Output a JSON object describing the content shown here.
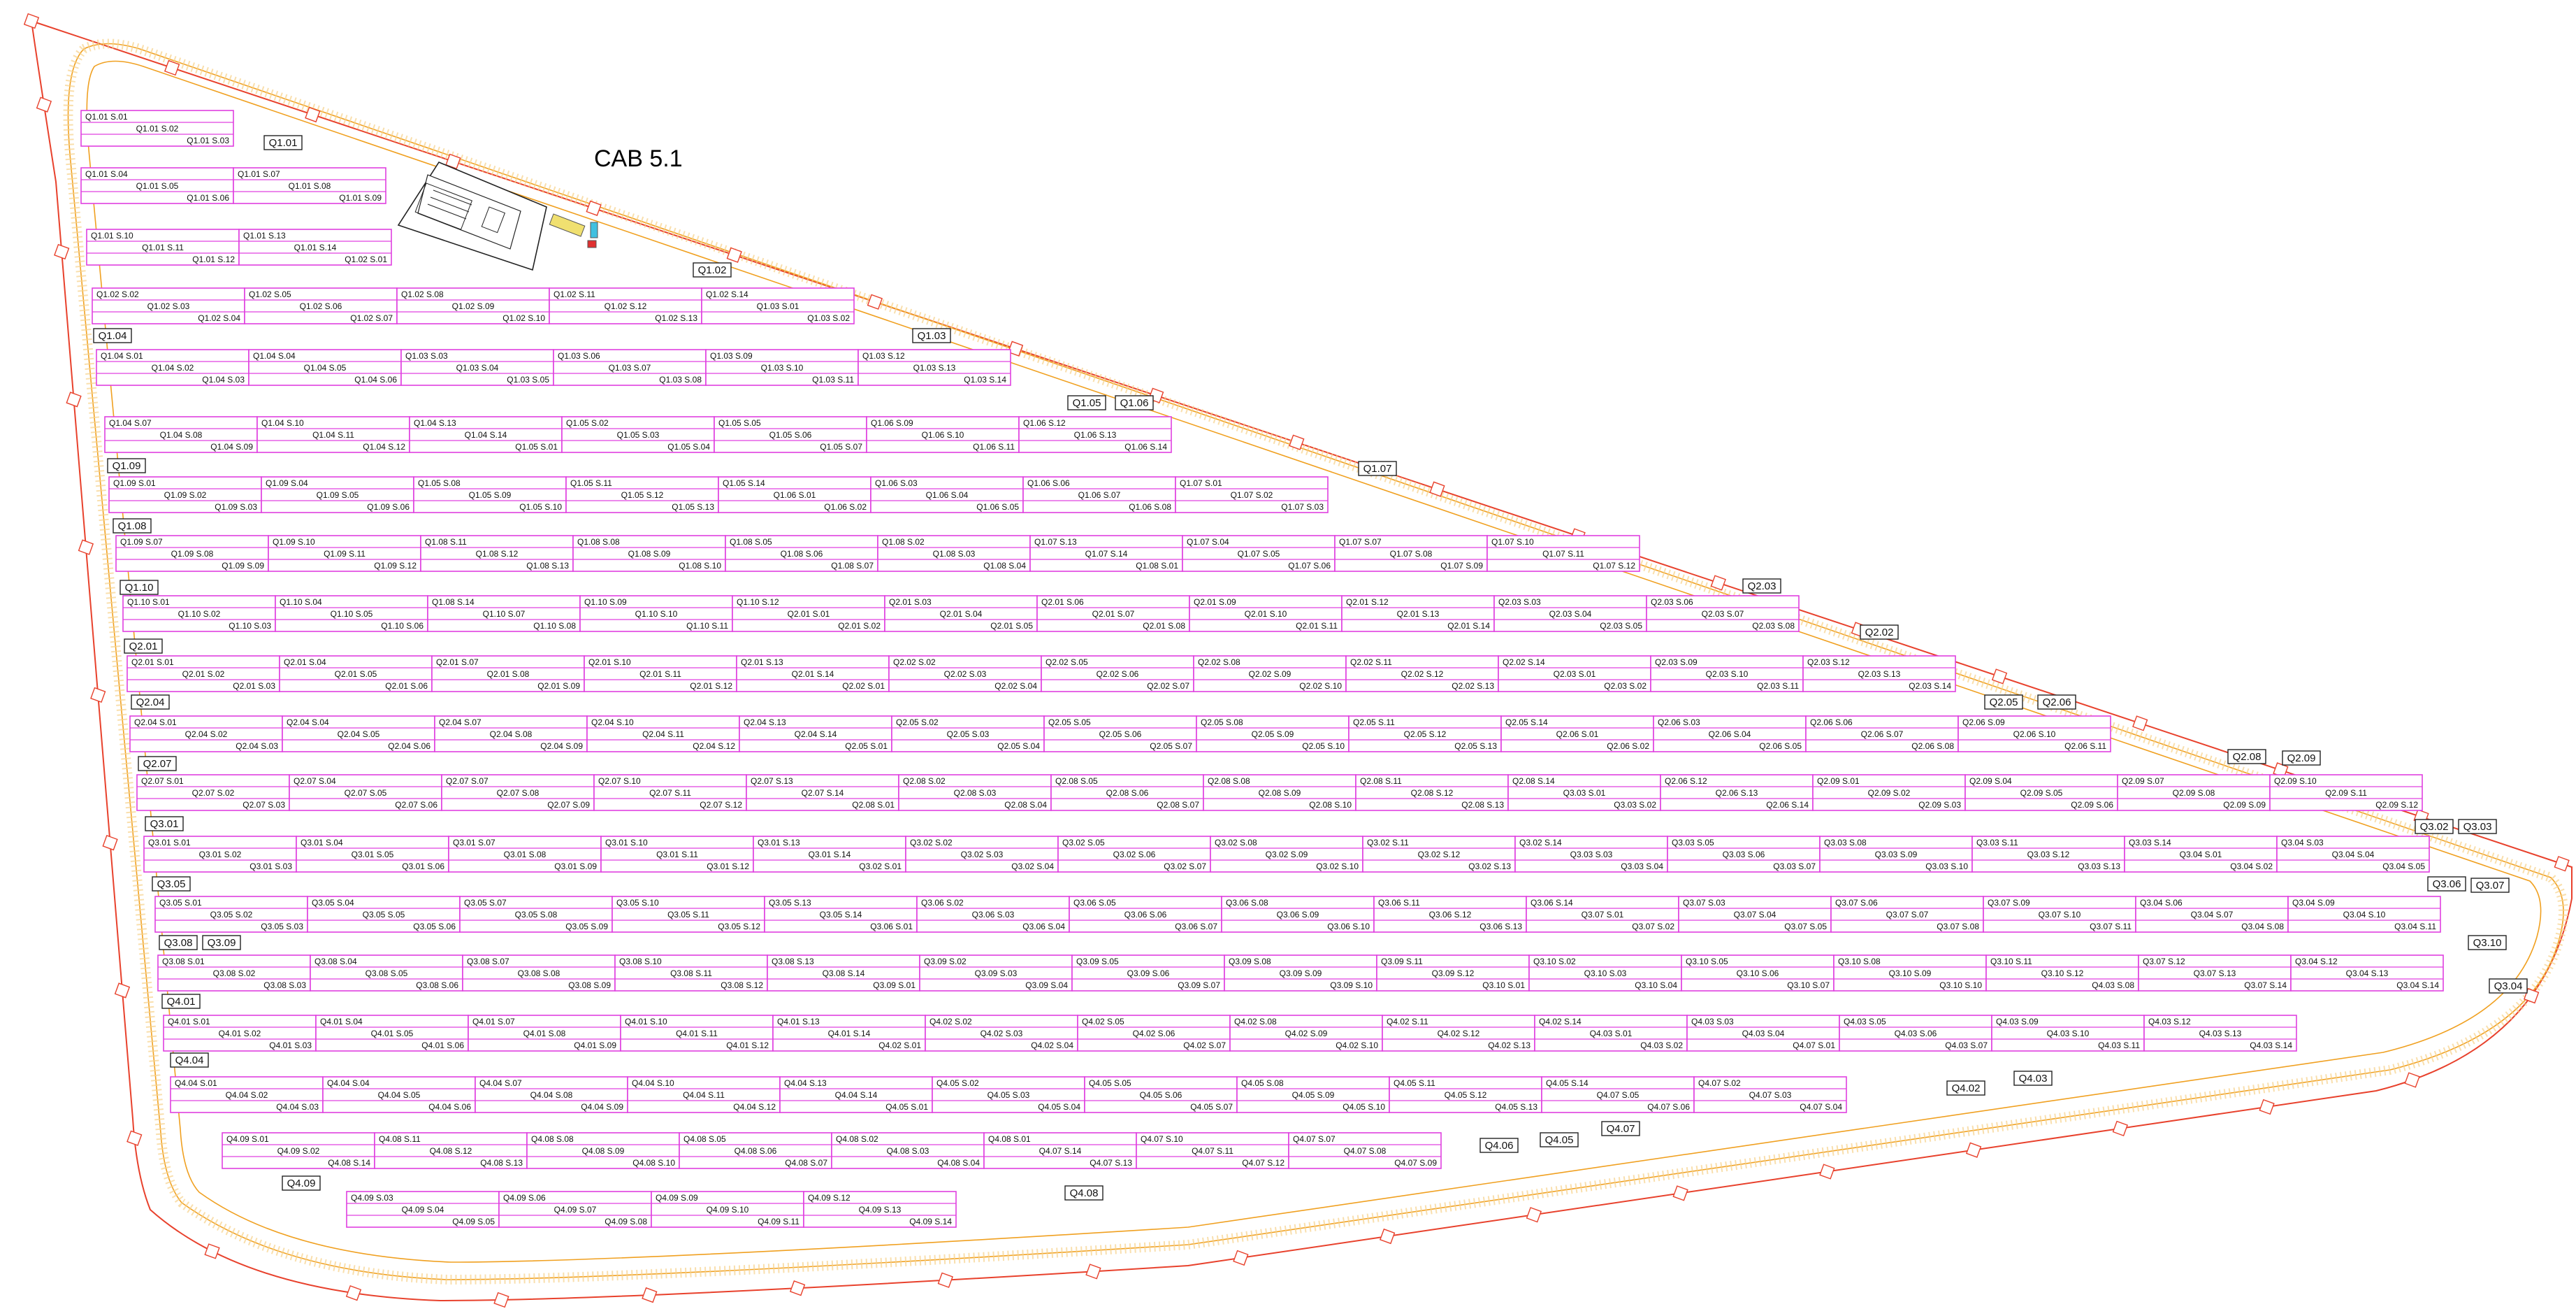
{
  "title": "CAB 5.1",
  "colors": {
    "table_outline": "#e040e0",
    "fence": "#e8412c",
    "track": "#f0a020",
    "post": "#e8412c"
  },
  "zone_tags": [
    "Q1.01",
    "Q1.02",
    "Q1.03",
    "Q1.04",
    "Q1.05",
    "Q1.06",
    "Q1.07",
    "Q1.08",
    "Q1.09",
    "Q1.10",
    "Q2.01",
    "Q2.02",
    "Q2.03",
    "Q2.04",
    "Q2.05",
    "Q2.06",
    "Q2.07",
    "Q2.08",
    "Q2.09",
    "Q3.01",
    "Q3.02",
    "Q3.03",
    "Q3.04",
    "Q3.05",
    "Q3.06",
    "Q3.07",
    "Q3.08",
    "Q3.09",
    "Q3.10",
    "Q4.01",
    "Q4.02",
    "Q4.03",
    "Q4.04",
    "Q4.05",
    "Q4.06",
    "Q4.07",
    "Q4.08",
    "Q4.09"
  ],
  "rows": [
    {
      "blocks": [
        [
          "Q1.01 S.01",
          "Q1.01 S.02",
          "Q1.01 S.03"
        ]
      ]
    },
    {
      "blocks": [
        [
          "Q1.01 S.04",
          "Q1.01 S.05",
          "Q1.01 S.06"
        ],
        [
          "Q1.01 S.07",
          "Q1.01 S.08",
          "Q1.01 S.09"
        ]
      ]
    },
    {
      "blocks": [
        [
          "Q1.01 S.10",
          "Q1.01 S.11",
          "Q1.01 S.12"
        ],
        [
          "Q1.01 S.13",
          "Q1.01 S.14",
          "Q1.02 S.01"
        ]
      ]
    },
    {
      "blocks": [
        [
          "Q1.02 S.02",
          "Q1.02 S.03",
          "Q1.02 S.04"
        ],
        [
          "Q1.02 S.05",
          "Q1.02 S.06",
          "Q1.02 S.07"
        ],
        [
          "Q1.02 S.08",
          "Q1.02 S.09",
          "Q1.02 S.10"
        ],
        [
          "Q1.02 S.11",
          "Q1.02 S.12",
          "Q1.02 S.13"
        ],
        [
          "Q1.02 S.14",
          "Q1.03 S.01",
          "Q1.03 S.02"
        ]
      ]
    },
    {
      "blocks": [
        [
          "Q1.04 S.01",
          "Q1.04 S.02",
          "Q1.04 S.03"
        ],
        [
          "Q1.04 S.04",
          "Q1.04 S.05",
          "Q1.04 S.06"
        ],
        [
          "Q1.03 S.03",
          "Q1.03 S.04",
          "Q1.03 S.05"
        ],
        [
          "Q1.03 S.06",
          "Q1.03 S.07",
          "Q1.03 S.08"
        ],
        [
          "Q1.03 S.09",
          "Q1.03 S.10",
          "Q1.03 S.11"
        ],
        [
          "Q1.03 S.12",
          "Q1.03 S.13",
          "Q1.03 S.14"
        ]
      ]
    },
    {
      "blocks": [
        [
          "Q1.04 S.07",
          "Q1.04 S.08",
          "Q1.04 S.09"
        ],
        [
          "Q1.04 S.10",
          "Q1.04 S.11",
          "Q1.04 S.12"
        ],
        [
          "Q1.04 S.13",
          "Q1.04 S.14",
          "Q1.05 S.01"
        ],
        [
          "Q1.05 S.02",
          "Q1.05 S.03",
          "Q1.05 S.04"
        ],
        [
          "Q1.05 S.05",
          "Q1.05 S.06",
          "Q1.05 S.07"
        ],
        [
          "Q1.06 S.09",
          "Q1.06 S.10",
          "Q1.06 S.11"
        ],
        [
          "Q1.06 S.12",
          "Q1.06 S.13",
          "Q1.06 S.14"
        ]
      ]
    },
    {
      "blocks": [
        [
          "Q1.09 S.01",
          "Q1.09 S.02",
          "Q1.09 S.03"
        ],
        [
          "Q1.09 S.04",
          "Q1.09 S.05",
          "Q1.09 S.06"
        ],
        [
          "Q1.05 S.08",
          "Q1.05 S.09",
          "Q1.05 S.10"
        ],
        [
          "Q1.05 S.11",
          "Q1.05 S.12",
          "Q1.05 S.13"
        ],
        [
          "Q1.05 S.14",
          "Q1.06 S.01",
          "Q1.06 S.02"
        ],
        [
          "Q1.06 S.03",
          "Q1.06 S.04",
          "Q1.06 S.05"
        ],
        [
          "Q1.06 S.06",
          "Q1.06 S.07",
          "Q1.06 S.08"
        ],
        [
          "Q1.07 S.01",
          "Q1.07 S.02",
          "Q1.07 S.03"
        ]
      ]
    },
    {
      "blocks": [
        [
          "Q1.09 S.07",
          "Q1.09 S.08",
          "Q1.09 S.09"
        ],
        [
          "Q1.09 S.10",
          "Q1.09 S.11",
          "Q1.09 S.12"
        ],
        [
          "Q1.08 S.11",
          "Q1.08 S.12",
          "Q1.08 S.13"
        ],
        [
          "Q1.08 S.08",
          "Q1.08 S.09",
          "Q1.08 S.10"
        ],
        [
          "Q1.08 S.05",
          "Q1.08 S.06",
          "Q1.08 S.07"
        ],
        [
          "Q1.08 S.02",
          "Q1.08 S.03",
          "Q1.08 S.04"
        ],
        [
          "Q1.07 S.13",
          "Q1.07 S.14",
          "Q1.08 S.01"
        ],
        [
          "Q1.07 S.04",
          "Q1.07 S.05",
          "Q1.07 S.06"
        ],
        [
          "Q1.07 S.07",
          "Q1.07 S.08",
          "Q1.07 S.09"
        ],
        [
          "Q1.07 S.10",
          "Q1.07 S.11",
          "Q1.07 S.12"
        ]
      ]
    },
    {
      "blocks": [
        [
          "Q1.10 S.01",
          "Q1.10 S.02",
          "Q1.10 S.03"
        ],
        [
          "Q1.10 S.04",
          "Q1.10 S.05",
          "Q1.10 S.06"
        ],
        [
          "Q1.08 S.14",
          "Q1.10 S.07",
          "Q1.10 S.08"
        ],
        [
          "Q1.10 S.09",
          "Q1.10 S.10",
          "Q1.10 S.11"
        ],
        [
          "Q1.10 S.12",
          "Q2.01 S.01",
          "Q2.01 S.02"
        ],
        [
          "Q2.01 S.03",
          "Q2.01 S.04",
          "Q2.01 S.05"
        ],
        [
          "Q2.01 S.06",
          "Q2.01 S.07",
          "Q2.01 S.08"
        ],
        [
          "Q2.01 S.09",
          "Q2.01 S.10",
          "Q2.01 S.11"
        ],
        [
          "Q2.01 S.12",
          "Q2.01 S.13",
          "Q2.01 S.14"
        ],
        [
          "Q2.03 S.03",
          "Q2.03 S.04",
          "Q2.03 S.05"
        ],
        [
          "Q2.03 S.06",
          "Q2.03 S.07",
          "Q2.03 S.08"
        ]
      ]
    },
    {
      "blocks": [
        [
          "Q2.01 S.01",
          "Q2.01 S.02",
          "Q2.01 S.03"
        ],
        [
          "Q2.01 S.04",
          "Q2.01 S.05",
          "Q2.01 S.06"
        ],
        [
          "Q2.01 S.07",
          "Q2.01 S.08",
          "Q2.01 S.09"
        ],
        [
          "Q2.01 S.10",
          "Q2.01 S.11",
          "Q2.01 S.12"
        ],
        [
          "Q2.01 S.13",
          "Q2.01 S.14",
          "Q2.02 S.01"
        ],
        [
          "Q2.02 S.02",
          "Q2.02 S.03",
          "Q2.02 S.04"
        ],
        [
          "Q2.02 S.05",
          "Q2.02 S.06",
          "Q2.02 S.07"
        ],
        [
          "Q2.02 S.08",
          "Q2.02 S.09",
          "Q2.02 S.10"
        ],
        [
          "Q2.02 S.11",
          "Q2.02 S.12",
          "Q2.02 S.13"
        ],
        [
          "Q2.02 S.14",
          "Q2.03 S.01",
          "Q2.03 S.02"
        ],
        [
          "Q2.03 S.09",
          "Q2.03 S.10",
          "Q2.03 S.11"
        ],
        [
          "Q2.03 S.12",
          "Q2.03 S.13",
          "Q2.03 S.14"
        ]
      ]
    },
    {
      "blocks": [
        [
          "Q2.04 S.01",
          "Q2.04 S.02",
          "Q2.04 S.03"
        ],
        [
          "Q2.04 S.04",
          "Q2.04 S.05",
          "Q2.04 S.06"
        ],
        [
          "Q2.04 S.07",
          "Q2.04 S.08",
          "Q2.04 S.09"
        ],
        [
          "Q2.04 S.10",
          "Q2.04 S.11",
          "Q2.04 S.12"
        ],
        [
          "Q2.04 S.13",
          "Q2.04 S.14",
          "Q2.05 S.01"
        ],
        [
          "Q2.05 S.02",
          "Q2.05 S.03",
          "Q2.05 S.04"
        ],
        [
          "Q2.05 S.05",
          "Q2.05 S.06",
          "Q2.05 S.07"
        ],
        [
          "Q2.05 S.08",
          "Q2.05 S.09",
          "Q2.05 S.10"
        ],
        [
          "Q2.05 S.11",
          "Q2.05 S.12",
          "Q2.05 S.13"
        ],
        [
          "Q2.05 S.14",
          "Q2.06 S.01",
          "Q2.06 S.02"
        ],
        [
          "Q2.06 S.03",
          "Q2.06 S.04",
          "Q2.06 S.05"
        ],
        [
          "Q2.06 S.06",
          "Q2.06 S.07",
          "Q2.06 S.08"
        ],
        [
          "Q2.06 S.09",
          "Q2.06 S.10",
          "Q2.06 S.11"
        ]
      ]
    },
    {
      "blocks": [
        [
          "Q2.07 S.01",
          "Q2.07 S.02",
          "Q2.07 S.03"
        ],
        [
          "Q2.07 S.04",
          "Q2.07 S.05",
          "Q2.07 S.06"
        ],
        [
          "Q2.07 S.07",
          "Q2.07 S.08",
          "Q2.07 S.09"
        ],
        [
          "Q2.07 S.10",
          "Q2.07 S.11",
          "Q2.07 S.12"
        ],
        [
          "Q2.07 S.13",
          "Q2.07 S.14",
          "Q2.08 S.01"
        ],
        [
          "Q2.08 S.02",
          "Q2.08 S.03",
          "Q2.08 S.04"
        ],
        [
          "Q2.08 S.05",
          "Q2.08 S.06",
          "Q2.08 S.07"
        ],
        [
          "Q2.08 S.08",
          "Q2.08 S.09",
          "Q2.08 S.10"
        ],
        [
          "Q2.08 S.11",
          "Q2.08 S.12",
          "Q2.08 S.13"
        ],
        [
          "Q2.08 S.14",
          "Q3.03 S.01",
          "Q3.03 S.02"
        ],
        [
          "Q2.06 S.12",
          "Q2.06 S.13",
          "Q2.06 S.14"
        ],
        [
          "Q2.09 S.01",
          "Q2.09 S.02",
          "Q2.09 S.03"
        ],
        [
          "Q2.09 S.04",
          "Q2.09 S.05",
          "Q2.09 S.06"
        ],
        [
          "Q2.09 S.07",
          "Q2.09 S.08",
          "Q2.09 S.09"
        ],
        [
          "Q2.09 S.10",
          "Q2.09 S.11",
          "Q2.09 S.12"
        ]
      ]
    },
    {
      "blocks": [
        [
          "Q3.01 S.01",
          "Q3.01 S.02",
          "Q3.01 S.03"
        ],
        [
          "Q3.01 S.04",
          "Q3.01 S.05",
          "Q3.01 S.06"
        ],
        [
          "Q3.01 S.07",
          "Q3.01 S.08",
          "Q3.01 S.09"
        ],
        [
          "Q3.01 S.10",
          "Q3.01 S.11",
          "Q3.01 S.12"
        ],
        [
          "Q3.01 S.13",
          "Q3.01 S.14",
          "Q3.02 S.01"
        ],
        [
          "Q3.02 S.02",
          "Q3.02 S.03",
          "Q3.02 S.04"
        ],
        [
          "Q3.02 S.05",
          "Q3.02 S.06",
          "Q3.02 S.07"
        ],
        [
          "Q3.02 S.08",
          "Q3.02 S.09",
          "Q3.02 S.10"
        ],
        [
          "Q3.02 S.11",
          "Q3.02 S.12",
          "Q3.02 S.13"
        ],
        [
          "Q3.02 S.14",
          "Q3.03 S.03",
          "Q3.03 S.04"
        ],
        [
          "Q3.03 S.05",
          "Q3.03 S.06",
          "Q3.03 S.07"
        ],
        [
          "Q3.03 S.08",
          "Q3.03 S.09",
          "Q3.03 S.10"
        ],
        [
          "Q3.03 S.11",
          "Q3.03 S.12",
          "Q3.03 S.13"
        ],
        [
          "Q3.03 S.14",
          "Q3.04 S.01",
          "Q3.04 S.02"
        ],
        [
          "Q3.04 S.03",
          "Q3.04 S.04",
          "Q3.04 S.05"
        ]
      ]
    },
    {
      "blocks": [
        [
          "Q3.05 S.01",
          "Q3.05 S.02",
          "Q3.05 S.03"
        ],
        [
          "Q3.05 S.04",
          "Q3.05 S.05",
          "Q3.05 S.06"
        ],
        [
          "Q3.05 S.07",
          "Q3.05 S.08",
          "Q3.05 S.09"
        ],
        [
          "Q3.05 S.10",
          "Q3.05 S.11",
          "Q3.05 S.12"
        ],
        [
          "Q3.05 S.13",
          "Q3.05 S.14",
          "Q3.06 S.01"
        ],
        [
          "Q3.06 S.02",
          "Q3.06 S.03",
          "Q3.06 S.04"
        ],
        [
          "Q3.06 S.05",
          "Q3.06 S.06",
          "Q3.06 S.07"
        ],
        [
          "Q3.06 S.08",
          "Q3.06 S.09",
          "Q3.06 S.10"
        ],
        [
          "Q3.06 S.11",
          "Q3.06 S.12",
          "Q3.06 S.13"
        ],
        [
          "Q3.06 S.14",
          "Q3.07 S.01",
          "Q3.07 S.02"
        ],
        [
          "Q3.07 S.03",
          "Q3.07 S.04",
          "Q3.07 S.05"
        ],
        [
          "Q3.07 S.06",
          "Q3.07 S.07",
          "Q3.07 S.08"
        ],
        [
          "Q3.07 S.09",
          "Q3.07 S.10",
          "Q3.07 S.11"
        ],
        [
          "Q3.04 S.06",
          "Q3.04 S.07",
          "Q3.04 S.08"
        ],
        [
          "Q3.04 S.09",
          "Q3.04 S.10",
          "Q3.04 S.11"
        ]
      ]
    },
    {
      "blocks": [
        [
          "Q3.08 S.01",
          "Q3.08 S.02",
          "Q3.08 S.03"
        ],
        [
          "Q3.08 S.04",
          "Q3.08 S.05",
          "Q3.08 S.06"
        ],
        [
          "Q3.08 S.07",
          "Q3.08 S.08",
          "Q3.08 S.09"
        ],
        [
          "Q3.08 S.10",
          "Q3.08 S.11",
          "Q3.08 S.12"
        ],
        [
          "Q3.08 S.13",
          "Q3.08 S.14",
          "Q3.09 S.01"
        ],
        [
          "Q3.09 S.02",
          "Q3.09 S.03",
          "Q3.09 S.04"
        ],
        [
          "Q3.09 S.05",
          "Q3.09 S.06",
          "Q3.09 S.07"
        ],
        [
          "Q3.09 S.08",
          "Q3.09 S.09",
          "Q3.09 S.10"
        ],
        [
          "Q3.09 S.11",
          "Q3.09 S.12",
          "Q3.10 S.01"
        ],
        [
          "Q3.10 S.02",
          "Q3.10 S.03",
          "Q3.10 S.04"
        ],
        [
          "Q3.10 S.05",
          "Q3.10 S.06",
          "Q3.10 S.07"
        ],
        [
          "Q3.10 S.08",
          "Q3.10 S.09",
          "Q3.10 S.10"
        ],
        [
          "Q3.10 S.11",
          "Q3.10 S.12",
          "Q4.03 S.08"
        ],
        [
          "Q3.07 S.12",
          "Q3.07 S.13",
          "Q3.07 S.14"
        ],
        [
          "Q3.04 S.12",
          "Q3.04 S.13",
          "Q3.04 S.14"
        ]
      ]
    },
    {
      "blocks": [
        [
          "Q4.01 S.01",
          "Q4.01 S.02",
          "Q4.01 S.03"
        ],
        [
          "Q4.01 S.04",
          "Q4.01 S.05",
          "Q4.01 S.06"
        ],
        [
          "Q4.01 S.07",
          "Q4.01 S.08",
          "Q4.01 S.09"
        ],
        [
          "Q4.01 S.10",
          "Q4.01 S.11",
          "Q4.01 S.12"
        ],
        [
          "Q4.01 S.13",
          "Q4.01 S.14",
          "Q4.02 S.01"
        ],
        [
          "Q4.02 S.02",
          "Q4.02 S.03",
          "Q4.02 S.04"
        ],
        [
          "Q4.02 S.05",
          "Q4.02 S.06",
          "Q4.02 S.07"
        ],
        [
          "Q4.02 S.08",
          "Q4.02 S.09",
          "Q4.02 S.10"
        ],
        [
          "Q4.02 S.11",
          "Q4.02 S.12",
          "Q4.02 S.13"
        ],
        [
          "Q4.02 S.14",
          "Q4.03 S.01",
          "Q4.03 S.02"
        ],
        [
          "Q4.03 S.03",
          "Q4.03 S.04",
          "Q4.07 S.01"
        ],
        [
          "Q4.03 S.05",
          "Q4.03 S.06",
          "Q4.03 S.07"
        ],
        [
          "Q4.03 S.09",
          "Q4.03 S.10",
          "Q4.03 S.11"
        ],
        [
          "Q4.03 S.12",
          "Q4.03 S.13",
          "Q4.03 S.14"
        ]
      ]
    },
    {
      "blocks": [
        [
          "Q4.04 S.01",
          "Q4.04 S.02",
          "Q4.04 S.03"
        ],
        [
          "Q4.04 S.04",
          "Q4.04 S.05",
          "Q4.04 S.06"
        ],
        [
          "Q4.04 S.07",
          "Q4.04 S.08",
          "Q4.04 S.09"
        ],
        [
          "Q4.04 S.10",
          "Q4.04 S.11",
          "Q4.04 S.12"
        ],
        [
          "Q4.04 S.13",
          "Q4.04 S.14",
          "Q4.05 S.01"
        ],
        [
          "Q4.05 S.02",
          "Q4.05 S.03",
          "Q4.05 S.04"
        ],
        [
          "Q4.05 S.05",
          "Q4.05 S.06",
          "Q4.05 S.07"
        ],
        [
          "Q4.05 S.08",
          "Q4.05 S.09",
          "Q4.05 S.10"
        ],
        [
          "Q4.05 S.11",
          "Q4.05 S.12",
          "Q4.05 S.13"
        ],
        [
          "Q4.05 S.14",
          "Q4.07 S.05",
          "Q4.07 S.06"
        ],
        [
          "Q4.07 S.02",
          "Q4.07 S.03",
          "Q4.07 S.04"
        ]
      ]
    },
    {
      "blocks": [
        [
          "Q4.09 S.01",
          "Q4.09 S.02",
          "Q4.08 S.14"
        ],
        [
          "Q4.08 S.11",
          "Q4.08 S.12",
          "Q4.08 S.13"
        ],
        [
          "Q4.08 S.08",
          "Q4.08 S.09",
          "Q4.08 S.10"
        ],
        [
          "Q4.08 S.05",
          "Q4.08 S.06",
          "Q4.08 S.07"
        ],
        [
          "Q4.08 S.02",
          "Q4.08 S.03",
          "Q4.08 S.04"
        ],
        [
          "Q4.08 S.01",
          "Q4.07 S.14",
          "Q4.07 S.13"
        ],
        [
          "Q4.07 S.10",
          "Q4.07 S.11",
          "Q4.07 S.12"
        ],
        [
          "Q4.07 S.07",
          "Q4.07 S.08",
          "Q4.07 S.09"
        ]
      ]
    },
    {
      "blocks": [
        [
          "Q4.09 S.03",
          "Q4.09 S.04",
          "Q4.09 S.05"
        ],
        [
          "Q4.09 S.06",
          "Q4.09 S.07",
          "Q4.09 S.08"
        ],
        [
          "Q4.09 S.09",
          "Q4.09 S.10",
          "Q4.09 S.11"
        ],
        [
          "Q4.09 S.12",
          "Q4.09 S.13",
          "Q4.09 S.14"
        ]
      ]
    }
  ]
}
